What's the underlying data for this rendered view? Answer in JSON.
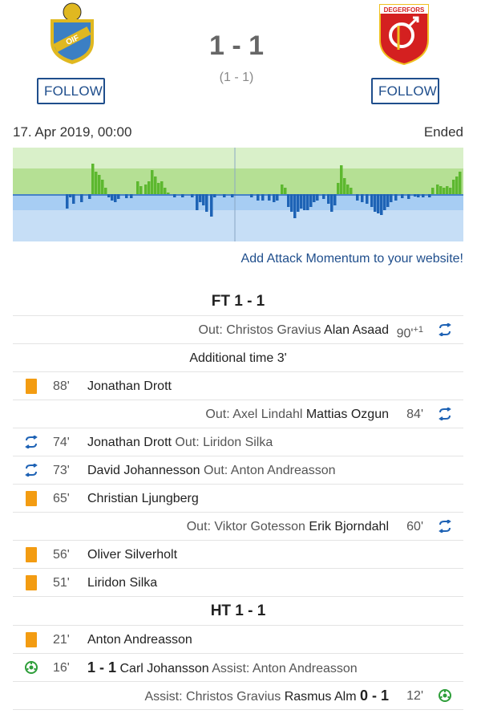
{
  "home": {
    "logo_text": "OIF",
    "follow_label": "FOLLOW"
  },
  "away": {
    "logo_text": "DEGERFORS",
    "follow_label": "FOLLOW"
  },
  "score": {
    "main": "1 - 1",
    "half": "(1 - 1)"
  },
  "match": {
    "date": "17. Apr 2019, 00:00",
    "status": "Ended"
  },
  "momentum": {
    "home_color": "#5db82f",
    "away_color": "#1e63b5",
    "add_link": "Add Attack Momentum to your website!"
  },
  "timeline": {
    "ft_label": "FT 1 - 1",
    "ht_label": "HT 1 - 1",
    "additional_time": "Additional time 3'",
    "events": [
      {
        "side": "away",
        "type": "sub",
        "minute": "90'",
        "stoppage": "+1",
        "out_text": "Out: Christos Gravius",
        "player": "Alan Asaad"
      },
      {
        "side": "home",
        "type": "yellow",
        "minute": "88'",
        "player": "Jonathan Drott"
      },
      {
        "side": "away",
        "type": "sub",
        "minute": "84'",
        "out_text": "Out: Axel Lindahl",
        "player": "Mattias Ozgun"
      },
      {
        "side": "home",
        "type": "sub",
        "minute": "74'",
        "player": "Jonathan Drott",
        "out_text": "Out: Liridon Silka"
      },
      {
        "side": "home",
        "type": "sub",
        "minute": "73'",
        "player": "David Johannesson",
        "out_text": "Out: Anton Andreasson"
      },
      {
        "side": "home",
        "type": "yellow",
        "minute": "65'",
        "player": "Christian Ljungberg"
      },
      {
        "side": "away",
        "type": "sub",
        "minute": "60'",
        "out_text": "Out: Viktor Gotesson",
        "player": "Erik Bjorndahl"
      },
      {
        "side": "home",
        "type": "yellow",
        "minute": "56'",
        "player": "Oliver Silverholt"
      },
      {
        "side": "home",
        "type": "yellow",
        "minute": "51'",
        "player": "Liridon Silka"
      },
      {
        "side": "home",
        "type": "yellow",
        "minute": "21'",
        "player": "Anton Andreasson"
      },
      {
        "side": "home",
        "type": "goal",
        "minute": "16'",
        "score": "1 - 1",
        "player": "Carl Johansson",
        "assist": "Assist: Anton Andreasson"
      },
      {
        "side": "away",
        "type": "goal",
        "minute": "12'",
        "score": "0 - 1",
        "player": "Rasmus Alm",
        "assist": "Assist: Christos Gravius"
      }
    ]
  }
}
